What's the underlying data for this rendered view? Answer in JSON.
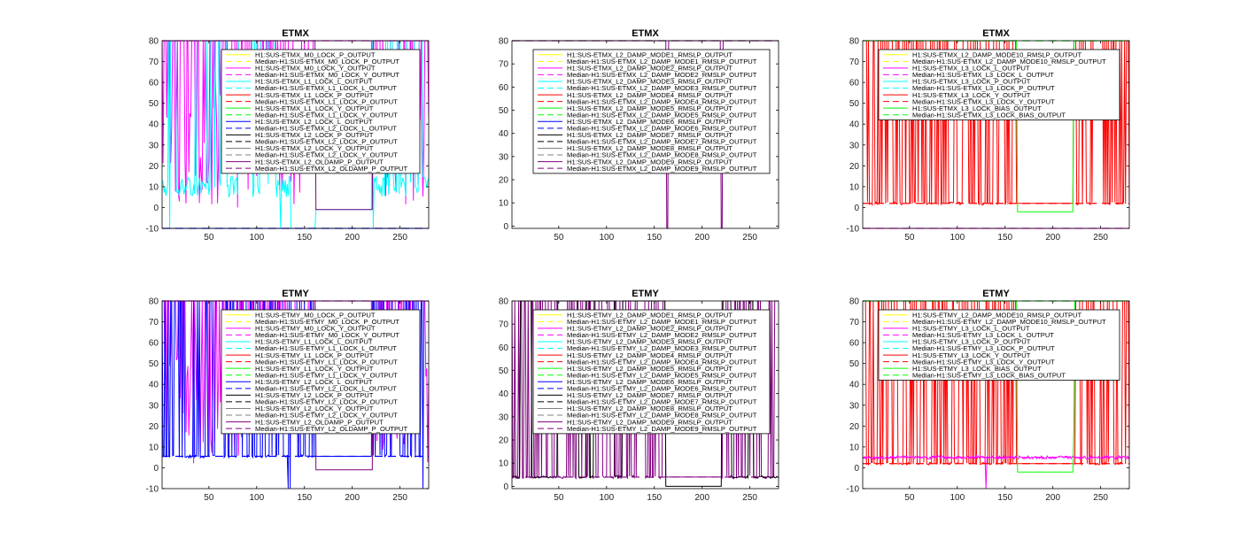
{
  "colors": {
    "yellow": "#ffff00",
    "magenta": "#ff00ff",
    "cyan": "#00ffff",
    "red": "#ff0000",
    "green": "#00ff00",
    "blue": "#0000ff",
    "black": "#000000",
    "gray": "#808080",
    "purple": "#800080"
  },
  "chart_data": [
    {
      "type": "line",
      "title": "ETMX",
      "xlim": [
        1,
        280
      ],
      "ylim": [
        -10,
        80
      ],
      "xticks": [
        50,
        100,
        150,
        200,
        250
      ],
      "yticks": [
        -10,
        0,
        10,
        20,
        30,
        40,
        50,
        60,
        70,
        80
      ],
      "legend_placement": "top-right",
      "series": [
        {
          "name": "H1:SUS-ETMX_M0_LOCK_P_OUTPUT",
          "color": "yellow",
          "style": "solid"
        },
        {
          "name": "Median-H1:SUS-ETMX_M0_LOCK_P_OUTPUT",
          "color": "yellow",
          "style": "dashed"
        },
        {
          "name": "H1:SUS-ETMX_M0_LOCK_Y_OUTPUT",
          "color": "magenta",
          "style": "solid"
        },
        {
          "name": "Median-H1:SUS-ETMX_M0_LOCK_Y_OUTPUT",
          "color": "magenta",
          "style": "dashed",
          "value": 80
        },
        {
          "name": "H1:SUS-ETMX_L1_LOCK_L_OUTPUT",
          "color": "cyan",
          "style": "solid"
        },
        {
          "name": "Median-H1:SUS-ETMX_L1_LOCK_L_OUTPUT",
          "color": "cyan",
          "style": "dashed"
        },
        {
          "name": "H1:SUS-ETMX_L1_LOCK_P_OUTPUT",
          "color": "red",
          "style": "solid"
        },
        {
          "name": "Median-H1:SUS-ETMX_L1_LOCK_P_OUTPUT",
          "color": "red",
          "style": "dashed"
        },
        {
          "name": "H1:SUS-ETMX_L1_LOCK_Y_OUTPUT",
          "color": "green",
          "style": "solid"
        },
        {
          "name": "Median-H1:SUS-ETMX_L1_LOCK_Y_OUTPUT",
          "color": "green",
          "style": "dashed"
        },
        {
          "name": "H1:SUS-ETMX_L2_LOCK_L_OUTPUT",
          "color": "blue",
          "style": "solid",
          "value": -10
        },
        {
          "name": "Median-H1:SUS-ETMX_L2_LOCK_L_OUTPUT",
          "color": "blue",
          "style": "dashed",
          "value": -10
        },
        {
          "name": "H1:SUS-ETMX_L2_LOCK_P_OUTPUT",
          "color": "black",
          "style": "solid"
        },
        {
          "name": "Median-H1:SUS-ETMX_L2_LOCK_P_OUTPUT",
          "color": "black",
          "style": "dashed"
        },
        {
          "name": "H1:SUS-ETMX_L2_LOCK_Y_OUTPUT",
          "color": "gray",
          "style": "solid"
        },
        {
          "name": "Median-H1:SUS-ETMX_L2_LOCK_Y_OUTPUT",
          "color": "gray",
          "style": "dashed"
        },
        {
          "name": "H1:SUS-ETMX_L2_OLDAMP_P_OUTPUT",
          "color": "purple",
          "style": "solid",
          "value": -1
        },
        {
          "name": "Median-H1:SUS-ETMX_L2_OLDAMP_P_OUTPUT",
          "color": "purple",
          "style": "dashed"
        }
      ]
    },
    {
      "type": "line",
      "title": "ETMX",
      "xlim": [
        1,
        280
      ],
      "ylim": [
        -1,
        80
      ],
      "xticks": [
        50,
        100,
        150,
        200,
        250
      ],
      "yticks": [
        0,
        10,
        20,
        30,
        40,
        50,
        60,
        70,
        80
      ],
      "legend_placement": "top-right",
      "series": [
        {
          "name": "H1:SUS-ETMX_L2_DAMP_MODE1_RMSLP_OUTPUT",
          "color": "yellow",
          "style": "solid"
        },
        {
          "name": "Median-H1:SUS-ETMX_L2_DAMP_MODE1_RMSLP_OUTPUT",
          "color": "yellow",
          "style": "dashed"
        },
        {
          "name": "H1:SUS-ETMX_L2_DAMP_MODE2_RMSLP_OUTPUT",
          "color": "magenta",
          "style": "solid"
        },
        {
          "name": "Median-H1:SUS-ETMX_L2_DAMP_MODE2_RMSLP_OUTPUT",
          "color": "magenta",
          "style": "dashed"
        },
        {
          "name": "H1:SUS-ETMX_L2_DAMP_MODE3_RMSLP_OUTPUT",
          "color": "cyan",
          "style": "solid"
        },
        {
          "name": "Median-H1:SUS-ETMX_L2_DAMP_MODE3_RMSLP_OUTPUT",
          "color": "cyan",
          "style": "dashed"
        },
        {
          "name": "H1:SUS-ETMX_L2_DAMP_MODE4_RMSLP_OUTPUT",
          "color": "red",
          "style": "solid"
        },
        {
          "name": "Median-H1:SUS-ETMX_L2_DAMP_MODE4_RMSLP_OUTPUT",
          "color": "red",
          "style": "dashed"
        },
        {
          "name": "H1:SUS-ETMX_L2_DAMP_MODE5_RMSLP_OUTPUT",
          "color": "green",
          "style": "solid"
        },
        {
          "name": "Median-H1:SUS-ETMX_L2_DAMP_MODE5_RMSLP_OUTPUT",
          "color": "green",
          "style": "dashed"
        },
        {
          "name": "H1:SUS-ETMX_L2_DAMP_MODE6_RMSLP_OUTPUT",
          "color": "blue",
          "style": "solid"
        },
        {
          "name": "Median-H1:SUS-ETMX_L2_DAMP_MODE6_RMSLP_OUTPUT",
          "color": "blue",
          "style": "dashed"
        },
        {
          "name": "H1:SUS-ETMX_L2_DAMP_MODE7_RMSLP_OUTPUT",
          "color": "black",
          "style": "solid"
        },
        {
          "name": "Median-H1:SUS-ETMX_L2_DAMP_MODE7_RMSLP_OUTPUT",
          "color": "black",
          "style": "dashed"
        },
        {
          "name": "H1:SUS-ETMX_L2_DAMP_MODE8_RMSLP_OUTPUT",
          "color": "gray",
          "style": "solid"
        },
        {
          "name": "Median-H1:SUS-ETMX_L2_DAMP_MODE8_RMSLP_OUTPUT",
          "color": "gray",
          "style": "dashed"
        },
        {
          "name": "H1:SUS-ETMX_L2_DAMP_MODE9_RMSLP_OUTPUT",
          "color": "purple",
          "style": "solid"
        },
        {
          "name": "Median-H1:SUS-ETMX_L2_DAMP_MODE9_RMSLP_OUTPUT",
          "color": "purple",
          "style": "dashed",
          "value": 80
        }
      ]
    },
    {
      "type": "line",
      "title": "ETMX",
      "xlim": [
        1,
        280
      ],
      "ylim": [
        -10,
        80
      ],
      "xticks": [
        50,
        100,
        150,
        200,
        250
      ],
      "yticks": [
        -10,
        0,
        10,
        20,
        30,
        40,
        50,
        60,
        70,
        80
      ],
      "legend_placement": "top-right",
      "series": [
        {
          "name": "H1:SUS-ETMX_L2_DAMP_MODE10_RMSLP_OUTPUT",
          "color": "yellow",
          "style": "solid"
        },
        {
          "name": "Median-H1:SUS-ETMX_L2_DAMP_MODE10_RMSLP_OUTPUT",
          "color": "yellow",
          "style": "dashed"
        },
        {
          "name": "H1:SUS-ETMX_L3_LOCK_L_OUTPUT",
          "color": "magenta",
          "style": "solid",
          "value": -10
        },
        {
          "name": "Median-H1:SUS-ETMX_L3_LOCK_L_OUTPUT",
          "color": "magenta",
          "style": "dashed",
          "value": -10
        },
        {
          "name": "H1:SUS-ETMX_L3_LOCK_P_OUTPUT",
          "color": "cyan",
          "style": "solid"
        },
        {
          "name": "Median-H1:SUS-ETMX_L3_LOCK_P_OUTPUT",
          "color": "cyan",
          "style": "dashed"
        },
        {
          "name": "H1:SUS-ETMX_L3_LOCK_Y_OUTPUT",
          "color": "red",
          "style": "solid"
        },
        {
          "name": "Median-H1:SUS-ETMX_L3_LOCK_Y_OUTPUT",
          "color": "red",
          "style": "dashed",
          "value": 2
        },
        {
          "name": "H1:SUS-ETMX_L3_LOCK_BIAS_OUTPUT",
          "color": "green",
          "style": "solid",
          "value": 80
        },
        {
          "name": "Median-H1:SUS-ETMX_L3_LOCK_BIAS_OUTPUT",
          "color": "green",
          "style": "dashed",
          "value": 80
        }
      ]
    },
    {
      "type": "line",
      "title": "ETMY",
      "xlim": [
        1,
        280
      ],
      "ylim": [
        -10,
        80
      ],
      "xticks": [
        50,
        100,
        150,
        200,
        250
      ],
      "yticks": [
        -10,
        0,
        10,
        20,
        30,
        40,
        50,
        60,
        70,
        80
      ],
      "legend_placement": "top-right",
      "series": [
        {
          "name": "H1:SUS-ETMY_M0_LOCK_P_OUTPUT",
          "color": "yellow",
          "style": "solid"
        },
        {
          "name": "Median-H1:SUS-ETMY_M0_LOCK_P_OUTPUT",
          "color": "yellow",
          "style": "dashed"
        },
        {
          "name": "H1:SUS-ETMY_M0_LOCK_Y_OUTPUT",
          "color": "magenta",
          "style": "solid"
        },
        {
          "name": "Median-H1:SUS-ETMY_M0_LOCK_Y_OUTPUT",
          "color": "magenta",
          "style": "dashed",
          "value": 80
        },
        {
          "name": "H1:SUS-ETMY_L1_LOCK_L_OUTPUT",
          "color": "cyan",
          "style": "solid"
        },
        {
          "name": "Median-H1:SUS-ETMY_L1_LOCK_L_OUTPUT",
          "color": "cyan",
          "style": "dashed"
        },
        {
          "name": "H1:SUS-ETMY_L1_LOCK_P_OUTPUT",
          "color": "red",
          "style": "solid"
        },
        {
          "name": "Median-H1:SUS-ETMY_L1_LOCK_P_OUTPUT",
          "color": "red",
          "style": "dashed"
        },
        {
          "name": "H1:SUS-ETMY_L1_LOCK_Y_OUTPUT",
          "color": "green",
          "style": "solid"
        },
        {
          "name": "Median-H1:SUS-ETMY_L1_LOCK_Y_OUTPUT",
          "color": "green",
          "style": "dashed"
        },
        {
          "name": "H1:SUS-ETMY_L2_LOCK_L_OUTPUT",
          "color": "blue",
          "style": "solid"
        },
        {
          "name": "Median-H1:SUS-ETMY_L2_LOCK_L_OUTPUT",
          "color": "blue",
          "style": "dashed",
          "value": 5.5
        },
        {
          "name": "H1:SUS-ETMY_L2_LOCK_P_OUTPUT",
          "color": "black",
          "style": "solid"
        },
        {
          "name": "Median-H1:SUS-ETMY_L2_LOCK_P_OUTPUT",
          "color": "black",
          "style": "dashed"
        },
        {
          "name": "H1:SUS-ETMY_L2_LOCK_Y_OUTPUT",
          "color": "gray",
          "style": "solid"
        },
        {
          "name": "Median-H1:SUS-ETMY_L2_LOCK_Y_OUTPUT",
          "color": "gray",
          "style": "dashed"
        },
        {
          "name": "H1:SUS-ETMY_L2_OLDAMP_P_OUTPUT",
          "color": "purple",
          "style": "solid",
          "value": -1
        },
        {
          "name": "Median-H1:SUS-ETMY_L2_OLDAMP_P_OUTPUT",
          "color": "purple",
          "style": "dashed"
        }
      ]
    },
    {
      "type": "line",
      "title": "ETMY",
      "xlim": [
        1,
        280
      ],
      "ylim": [
        -1,
        80
      ],
      "xticks": [
        50,
        100,
        150,
        200,
        250
      ],
      "yticks": [
        0,
        10,
        20,
        30,
        40,
        50,
        60,
        70,
        80
      ],
      "legend_placement": "top-right",
      "series": [
        {
          "name": "H1:SUS-ETMY_L2_DAMP_MODE1_RMSLP_OUTPUT",
          "color": "yellow",
          "style": "solid"
        },
        {
          "name": "Median-H1:SUS-ETMY_L2_DAMP_MODE1_RMSLP_OUTPUT",
          "color": "yellow",
          "style": "dashed"
        },
        {
          "name": "H1:SUS-ETMY_L2_DAMP_MODE2_RMSLP_OUTPUT",
          "color": "magenta",
          "style": "solid"
        },
        {
          "name": "Median-H1:SUS-ETMY_L2_DAMP_MODE2_RMSLP_OUTPUT",
          "color": "magenta",
          "style": "dashed"
        },
        {
          "name": "H1:SUS-ETMY_L2_DAMP_MODE3_RMSLP_OUTPUT",
          "color": "cyan",
          "style": "solid"
        },
        {
          "name": "Median-H1:SUS-ETMY_L2_DAMP_MODE3_RMSLP_OUTPUT",
          "color": "cyan",
          "style": "dashed"
        },
        {
          "name": "H1:SUS-ETMY_L2_DAMP_MODE4_RMSLP_OUTPUT",
          "color": "red",
          "style": "solid"
        },
        {
          "name": "Median-H1:SUS-ETMY_L2_DAMP_MODE4_RMSLP_OUTPUT",
          "color": "red",
          "style": "dashed"
        },
        {
          "name": "H1:SUS-ETMY_L2_DAMP_MODE5_RMSLP_OUTPUT",
          "color": "green",
          "style": "solid"
        },
        {
          "name": "Median-H1:SUS-ETMY_L2_DAMP_MODE5_RMSLP_OUTPUT",
          "color": "green",
          "style": "dashed"
        },
        {
          "name": "H1:SUS-ETMY_L2_DAMP_MODE6_RMSLP_OUTPUT",
          "color": "blue",
          "style": "solid"
        },
        {
          "name": "Median-H1:SUS-ETMY_L2_DAMP_MODE6_RMSLP_OUTPUT",
          "color": "blue",
          "style": "dashed"
        },
        {
          "name": "H1:SUS-ETMY_L2_DAMP_MODE7_RMSLP_OUTPUT",
          "color": "black",
          "style": "solid"
        },
        {
          "name": "Median-H1:SUS-ETMY_L2_DAMP_MODE7_RMSLP_OUTPUT",
          "color": "black",
          "style": "dashed"
        },
        {
          "name": "H1:SUS-ETMY_L2_DAMP_MODE8_RMSLP_OUTPUT",
          "color": "gray",
          "style": "solid"
        },
        {
          "name": "Median-H1:SUS-ETMY_L2_DAMP_MODE8_RMSLP_OUTPUT",
          "color": "gray",
          "style": "dashed"
        },
        {
          "name": "H1:SUS-ETMY_L2_DAMP_MODE9_RMSLP_OUTPUT",
          "color": "purple",
          "style": "solid"
        },
        {
          "name": "Median-H1:SUS-ETMY_L2_DAMP_MODE9_RMSLP_OUTPUT",
          "color": "purple",
          "style": "dashed",
          "value": 4
        }
      ]
    },
    {
      "type": "line",
      "title": "ETMY",
      "xlim": [
        1,
        280
      ],
      "ylim": [
        -10,
        80
      ],
      "xticks": [
        50,
        100,
        150,
        200,
        250
      ],
      "yticks": [
        -10,
        0,
        10,
        20,
        30,
        40,
        50,
        60,
        70,
        80
      ],
      "legend_placement": "top-right",
      "series": [
        {
          "name": "H1:SUS-ETMY_L2_DAMP_MODE10_RMSLP_OUTPUT",
          "color": "yellow",
          "style": "solid"
        },
        {
          "name": "Median-H1:SUS-ETMY_L2_DAMP_MODE10_RMSLP_OUTPUT",
          "color": "yellow",
          "style": "dashed"
        },
        {
          "name": "H1:SUS-ETMY_L3_LOCK_L_OUTPUT",
          "color": "magenta",
          "style": "solid"
        },
        {
          "name": "Median-H1:SUS-ETMY_L3_LOCK_L_OUTPUT",
          "color": "magenta",
          "style": "dashed",
          "value": 5
        },
        {
          "name": "H1:SUS-ETMY_L3_LOCK_P_OUTPUT",
          "color": "cyan",
          "style": "solid"
        },
        {
          "name": "Median-H1:SUS-ETMY_L3_LOCK_P_OUTPUT",
          "color": "cyan",
          "style": "dashed"
        },
        {
          "name": "H1:SUS-ETMY_L3_LOCK_Y_OUTPUT",
          "color": "red",
          "style": "solid"
        },
        {
          "name": "Median-H1:SUS-ETMY_L3_LOCK_Y_OUTPUT",
          "color": "red",
          "style": "dashed",
          "value": 2
        },
        {
          "name": "H1:SUS-ETMY_L3_LOCK_BIAS_OUTPUT",
          "color": "green",
          "style": "solid"
        },
        {
          "name": "Median-H1:SUS-ETMY_L3_LOCK_BIAS_OUTPUT",
          "color": "green",
          "style": "dashed",
          "value": 80
        }
      ]
    }
  ]
}
